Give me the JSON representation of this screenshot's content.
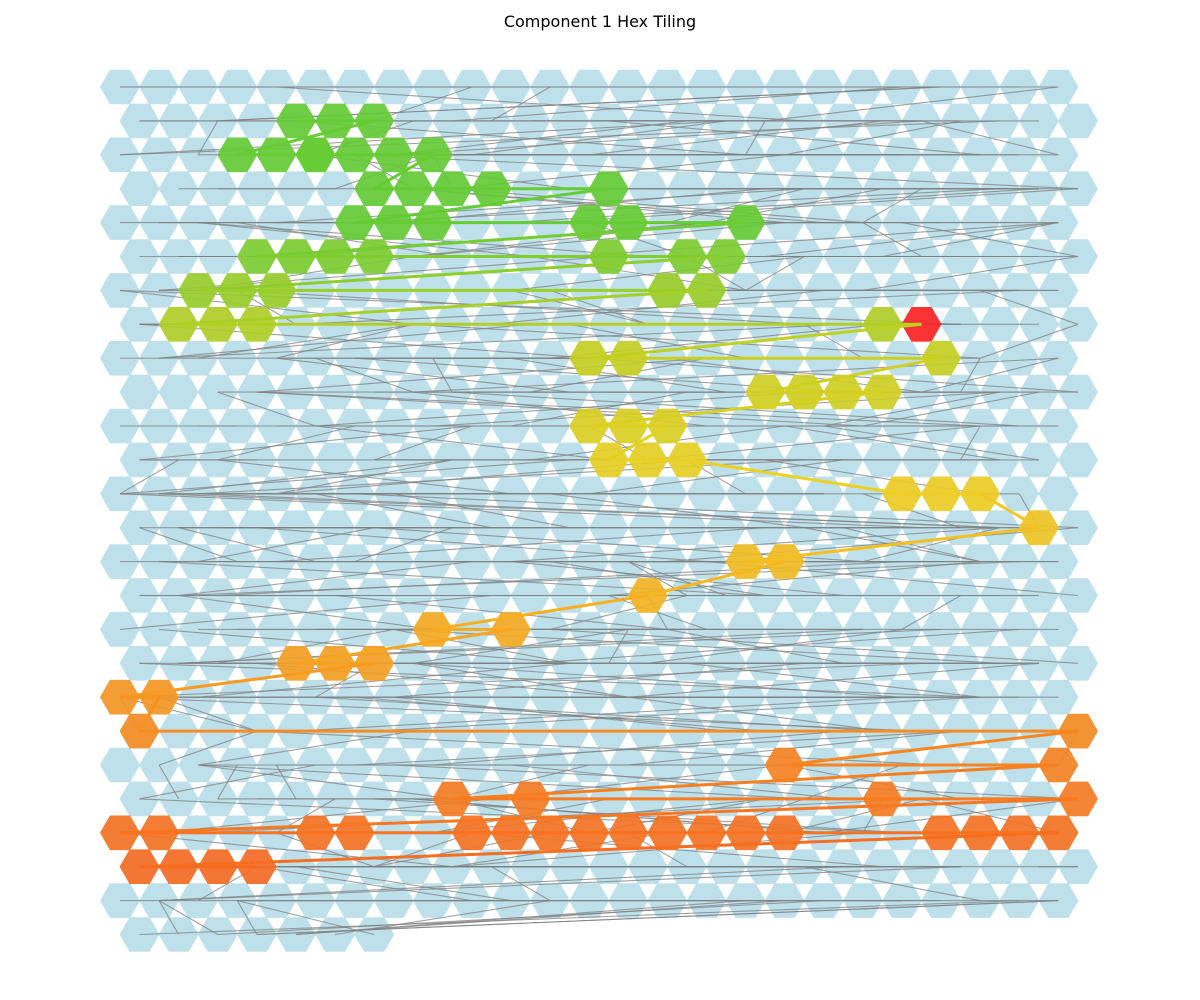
{
  "title": "Component 1 Hex Tiling",
  "colors": {
    "background_hex": "#add8e6",
    "background_edge": "#808080",
    "start": "#ff2020",
    "end": "#228b22",
    "path_gradient": [
      "#66cc33",
      "#c8d020",
      "#f0d020",
      "#f8b020",
      "#f88a20",
      "#f86a20"
    ]
  },
  "grid": {
    "rows": 26,
    "cols_even_row": 25,
    "cols_odd_row": 25,
    "last_row_cols": 7
  },
  "path": {
    "start_cell": [
      7,
      20
    ],
    "end_cell": [
      20,
      7
    ],
    "cells": [
      [
        7,
        20
      ],
      [
        8,
        21
      ],
      [
        7,
        19
      ],
      [
        6,
        15
      ],
      [
        6,
        14
      ],
      [
        5,
        15
      ],
      [
        5,
        14
      ],
      [
        5,
        12
      ],
      [
        4,
        16
      ],
      [
        4,
        13
      ],
      [
        4,
        12
      ],
      [
        3,
        12
      ],
      [
        2,
        5
      ],
      [
        2,
        4
      ],
      [
        2,
        3
      ],
      [
        3,
        9
      ],
      [
        4,
        6
      ],
      [
        4,
        8
      ],
      [
        4,
        7
      ],
      [
        5,
        6
      ],
      [
        3,
        8
      ],
      [
        3,
        7
      ],
      [
        2,
        8
      ],
      [
        1,
        6
      ],
      [
        1,
        5
      ],
      [
        1,
        4
      ],
      [
        3,
        6
      ],
      [
        2,
        7
      ],
      [
        2,
        6
      ],
      [
        2,
        5
      ],
      [
        5,
        4
      ],
      [
        5,
        5
      ],
      [
        5,
        3
      ],
      [
        6,
        3
      ],
      [
        6,
        4
      ],
      [
        6,
        2
      ],
      [
        7,
        3
      ],
      [
        7,
        2
      ],
      [
        7,
        1
      ],
      [
        8,
        12
      ],
      [
        8,
        13
      ],
      [
        9,
        16
      ],
      [
        9,
        17
      ],
      [
        9,
        18
      ],
      [
        9,
        19
      ],
      [
        10,
        14
      ],
      [
        10,
        13
      ],
      [
        10,
        12
      ],
      [
        11,
        12
      ],
      [
        11,
        13
      ],
      [
        11,
        14
      ],
      [
        12,
        21
      ],
      [
        12,
        22
      ],
      [
        12,
        20
      ],
      [
        13,
        23
      ],
      [
        14,
        16
      ],
      [
        14,
        17
      ],
      [
        15,
        13
      ],
      [
        16,
        10
      ],
      [
        16,
        8
      ],
      [
        17,
        4
      ],
      [
        17,
        5
      ],
      [
        17,
        6
      ],
      [
        18,
        0
      ],
      [
        18,
        1
      ],
      [
        19,
        24
      ],
      [
        19,
        0
      ],
      [
        20,
        17
      ],
      [
        20,
        24
      ],
      [
        21,
        8
      ],
      [
        21,
        10
      ],
      [
        21,
        19
      ],
      [
        21,
        24
      ],
      [
        22,
        0
      ],
      [
        22,
        1
      ],
      [
        22,
        5
      ],
      [
        22,
        6
      ],
      [
        22,
        9
      ],
      [
        22,
        10
      ],
      [
        22,
        11
      ],
      [
        22,
        12
      ],
      [
        22,
        13
      ],
      [
        22,
        14
      ],
      [
        22,
        15
      ],
      [
        22,
        16
      ],
      [
        22,
        17
      ],
      [
        22,
        21
      ],
      [
        22,
        22
      ],
      [
        22,
        23
      ],
      [
        22,
        24
      ],
      [
        23,
        0
      ],
      [
        23,
        1
      ],
      [
        23,
        2
      ],
      [
        23,
        3
      ]
    ]
  }
}
